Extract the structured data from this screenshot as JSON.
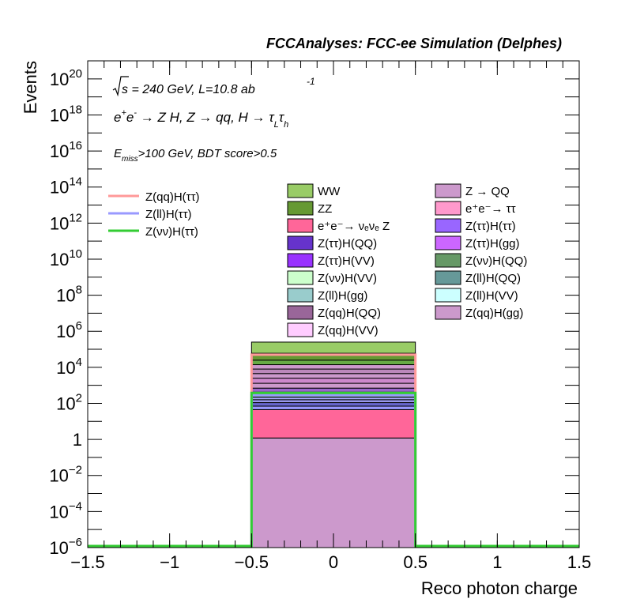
{
  "header": "FCCAnalyses: FCC-ee Simulation (Delphes)",
  "annotations": {
    "sqrt": "s",
    "energy": " = 240 GeV, L=10.8 ab",
    "lumi_exp": "-1",
    "process": {
      "ee": "e",
      "plus": "+",
      "e2": "e",
      "minus": "-",
      "rest": " → Z H, Z  → qq, H  → τ",
      "tau_l": "L",
      "tau": "τ",
      "tau_h": "h"
    },
    "selection": {
      "E": "E",
      "miss": "miss",
      "rest": ">100 GeV, BDT score>0.5"
    }
  },
  "chart_data": {
    "type": "bar",
    "stacked": true,
    "histogram": true,
    "xlabel": "Reco photon charge",
    "ylabel": "Events",
    "xlim": [
      -1.5,
      1.5
    ],
    "ylim": [
      1e-06,
      1e+21
    ],
    "log_y": true,
    "grid": false,
    "bins": [
      [
        -0.5,
        0.5
      ]
    ],
    "x_tick_labels": [
      "−1.5",
      "−1",
      "−0.5",
      "0",
      "0.5",
      "1",
      "1.5"
    ],
    "x_tick_values": [
      -1.5,
      -1,
      -0.5,
      0,
      0.5,
      1,
      1.5
    ],
    "y_ticks": [
      {
        "value": 1e-06,
        "base": "10",
        "exp": "−6"
      },
      {
        "value": 0.0001,
        "base": "10",
        "exp": "−4"
      },
      {
        "value": 0.01,
        "base": "10",
        "exp": "−2"
      },
      {
        "value": 1,
        "base": "1",
        "exp": ""
      },
      {
        "value": 100.0,
        "base": "10",
        "exp": "2"
      },
      {
        "value": 10000.0,
        "base": "10",
        "exp": "4"
      },
      {
        "value": 1000000.0,
        "base": "10",
        "exp": "6"
      },
      {
        "value": 100000000.0,
        "base": "10",
        "exp": "8"
      },
      {
        "value": 10000000000.0,
        "base": "10",
        "exp": "10"
      },
      {
        "value": 1000000000000.0,
        "base": "10",
        "exp": "12"
      },
      {
        "value": 100000000000000.0,
        "base": "10",
        "exp": "14"
      },
      {
        "value": 1e+16,
        "base": "10",
        "exp": "16"
      },
      {
        "value": 1e+18,
        "base": "10",
        "exp": "18"
      },
      {
        "value": 1e+20,
        "base": "10",
        "exp": "20"
      }
    ],
    "stack_bounds": [
      {
        "lo": 1e-06,
        "hi": 1.2,
        "color": "#cc99cc"
      },
      {
        "lo": 1.2,
        "hi": 45,
        "color": "#ff6699"
      },
      {
        "lo": 45,
        "hi": 70,
        "color": "#9999ff"
      },
      {
        "lo": 70,
        "hi": 110,
        "color": "#6666cc"
      },
      {
        "lo": 110,
        "hi": 160,
        "color": "#9999ee"
      },
      {
        "lo": 160,
        "hi": 220,
        "color": "#aaaaff"
      },
      {
        "lo": 220,
        "hi": 300,
        "color": "#66cc66"
      },
      {
        "lo": 300,
        "hi": 420,
        "color": "#66cc66"
      },
      {
        "lo": 420,
        "hi": 700,
        "color": "#9966cc"
      },
      {
        "lo": 700,
        "hi": 1300,
        "color": "#cc99cc"
      },
      {
        "lo": 1300,
        "hi": 2500,
        "color": "#cc88cc"
      },
      {
        "lo": 2500,
        "hi": 4500,
        "color": "#cc99cc"
      },
      {
        "lo": 4500,
        "hi": 8000,
        "color": "#bb88bb"
      },
      {
        "lo": 8000,
        "hi": 14000,
        "color": "#cc99cc"
      },
      {
        "lo": 14000,
        "hi": 25000,
        "color": "#66aa44"
      },
      {
        "lo": 25000,
        "hi": 60000,
        "color": "#669933"
      },
      {
        "lo": 60000,
        "hi": 250000,
        "color": "#99cc66"
      }
    ],
    "signals": [
      {
        "name": "Z(qq)H(ττ)",
        "color": "#ff9999",
        "value": 50000
      },
      {
        "name": "Z(ll)H(ττ)",
        "color": "#9999ff",
        "value": 280
      },
      {
        "name": "Z(νν)H(ττ)",
        "color": "#33cc33",
        "value": 380
      }
    ],
    "legend_placement": "top",
    "legend": [
      {
        "label": "WW",
        "color": "#99cc66"
      },
      {
        "label": "ZZ",
        "color": "#669933"
      },
      {
        "label": "e⁺e⁻→ νₑνₑ Z",
        "color": "#ff6699"
      },
      {
        "label": "Z(ττ)H(QQ)",
        "color": "#6633cc"
      },
      {
        "label": "Z(ττ)H(VV)",
        "color": "#9933ff"
      },
      {
        "label": "Z(νν)H(VV)",
        "color": "#ccffcc"
      },
      {
        "label": "Z(ll)H(gg)",
        "color": "#99cccc"
      },
      {
        "label": "Z(qq)H(QQ)",
        "color": "#996699"
      },
      {
        "label": "Z(qq)H(VV)",
        "color": "#ffccff"
      },
      {
        "label": "Z → QQ",
        "color": "#cc99cc"
      },
      {
        "label": "e⁺e⁻→ ττ",
        "color": "#ff99cc"
      },
      {
        "label": "Z(ττ)H(ττ)",
        "color": "#9966ff"
      },
      {
        "label": "Z(ττ)H(gg)",
        "color": "#cc66ff"
      },
      {
        "label": "Z(νν)H(QQ)",
        "color": "#669966"
      },
      {
        "label": "Z(ll)H(QQ)",
        "color": "#669999"
      },
      {
        "label": "Z(ll)H(VV)",
        "color": "#ccffff"
      },
      {
        "label": "Z(qq)H(gg)",
        "color": "#cc99cc"
      }
    ]
  }
}
